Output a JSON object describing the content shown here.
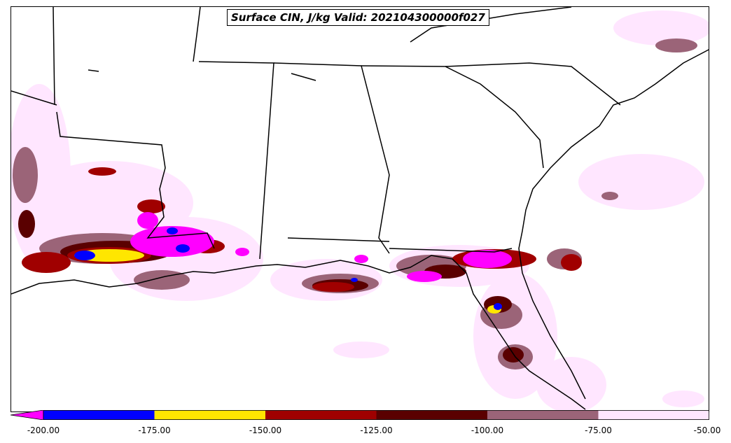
{
  "title": "Surface CIN, J/kg Valid: 202104300000f027",
  "colorbar": {
    "extend": "min",
    "ticks": [
      "-200.00",
      "-175.00",
      "-150.00",
      "-125.00",
      "-100.00",
      "-75.00",
      "-50.00"
    ],
    "colors": [
      "#ff00ff",
      "#0000ff",
      "#ffe600",
      "#a00000",
      "#5a0000",
      "#9b6478",
      "#ffe6ff"
    ]
  },
  "levels": {
    "lt_-200": "#ff00ff",
    "-200_-175": "#0000ff",
    "-175_-150": "#ffe600",
    "-150_-125": "#a00000",
    "-125_-100": "#5a0000",
    "-100_-75": "#9b6478",
    "-75_-50": "#ffe6ff"
  }
}
